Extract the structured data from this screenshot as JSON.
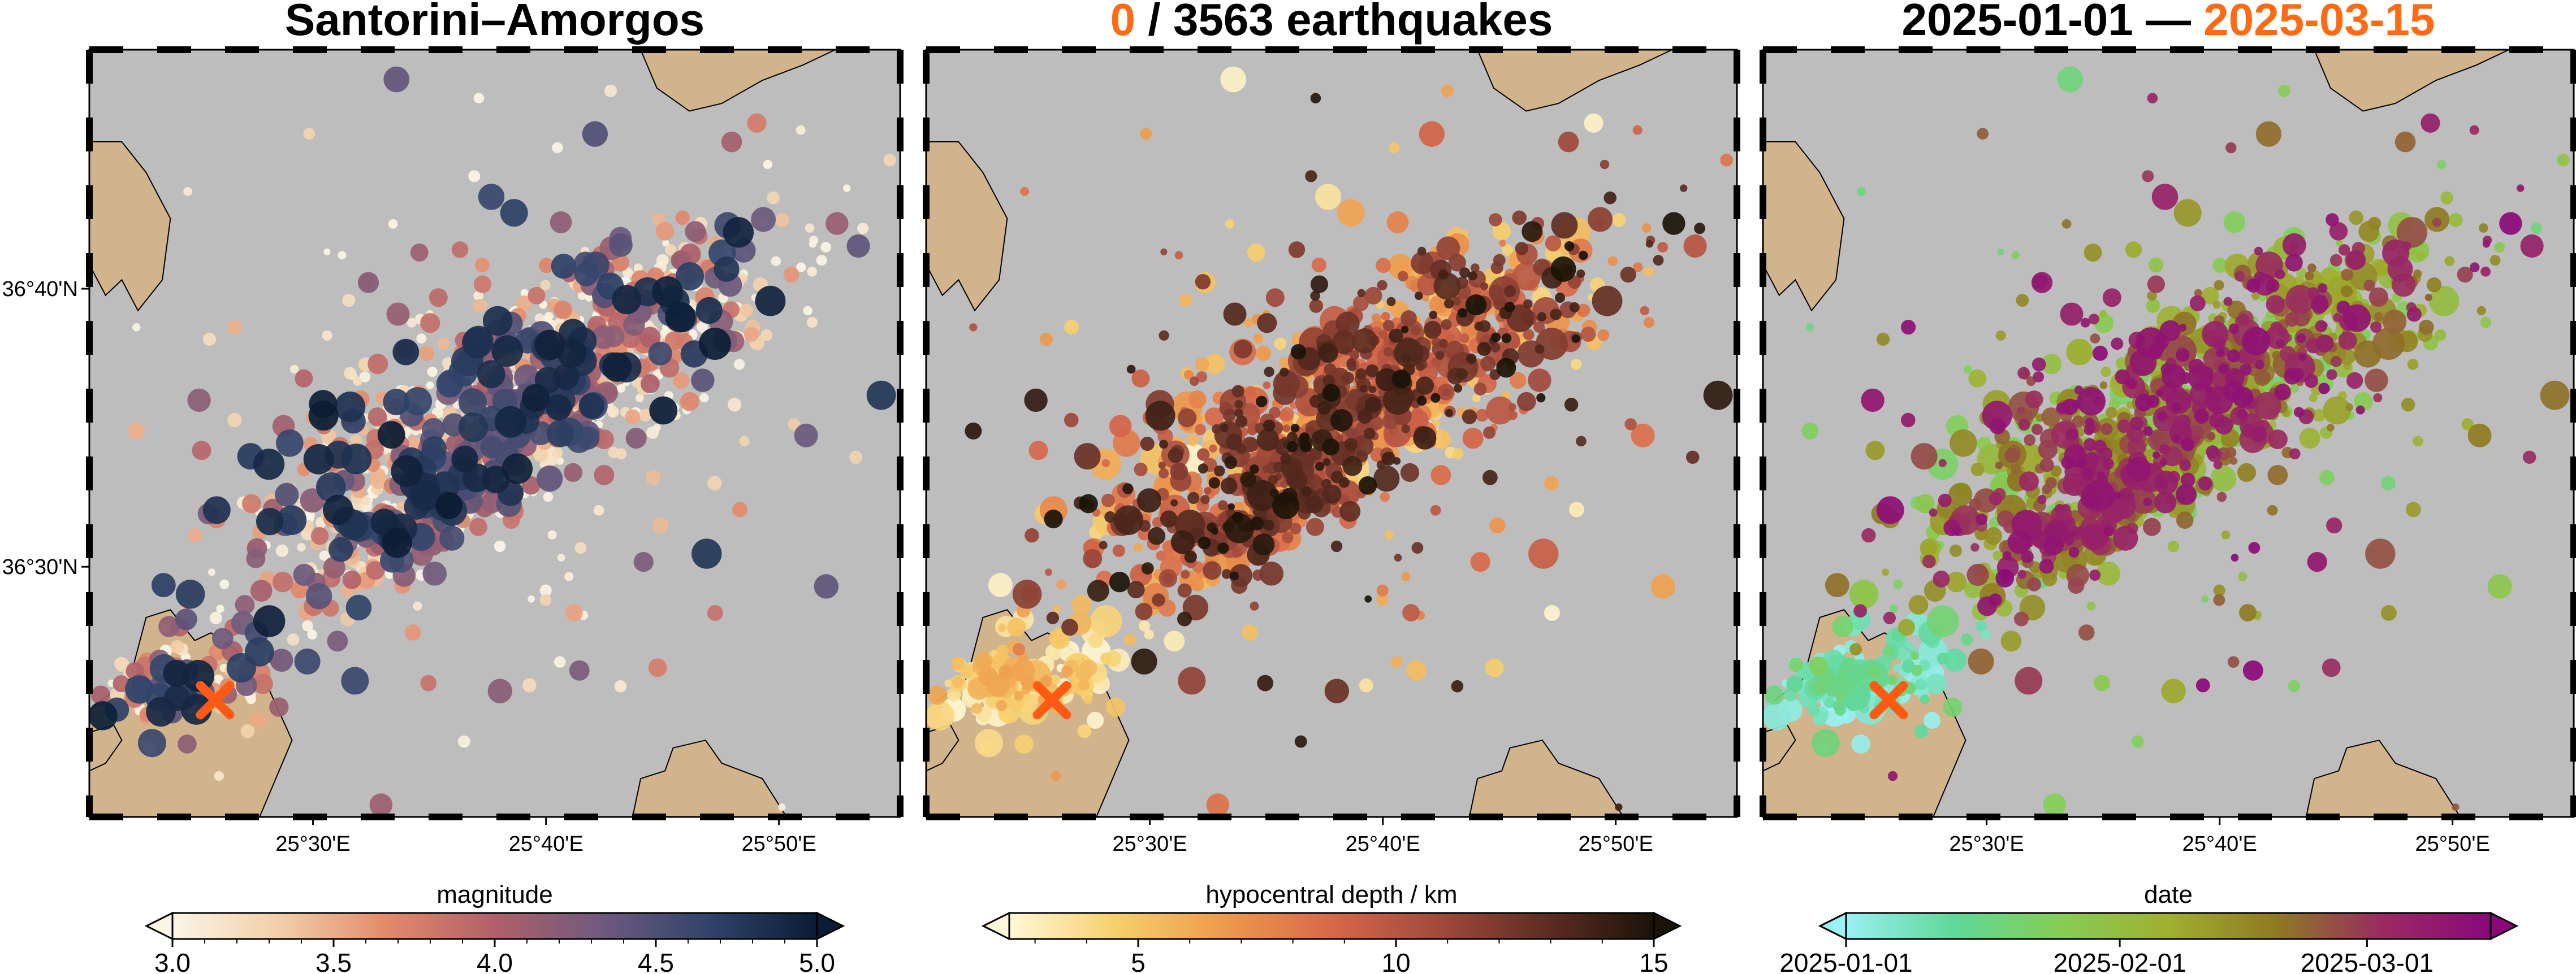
{
  "panels": [
    {
      "title_parts": [
        {
          "text": "Santorini–Amorgos",
          "color": "#000000"
        }
      ],
      "colorbar": {
        "label": "magnitude",
        "min": 3.0,
        "max": 5.0,
        "ticks": [
          "3.0",
          "3.5",
          "4.0",
          "4.5",
          "5.0"
        ],
        "tick_values": [
          3.0,
          3.5,
          4.0,
          4.5,
          5.0
        ],
        "minor_ticks": [
          3.1,
          3.2,
          3.3,
          3.4,
          3.6,
          3.7,
          3.8,
          3.9,
          4.1,
          4.2,
          4.3,
          4.4,
          4.6,
          4.7,
          4.8,
          4.9
        ],
        "colormap": [
          "#fbf5e6",
          "#f1cfa8",
          "#e38a6a",
          "#b0606a",
          "#6e5a7e",
          "#30446a",
          "#0a1c33"
        ]
      },
      "color_by": "magnitude",
      "y_axis_labels": [
        "36°40'N",
        "36°30'N"
      ],
      "show_epicenter_marker": true
    },
    {
      "title_parts": [
        {
          "text": "0",
          "color": "#ff6a13"
        },
        {
          "text": " / 3563 earthquakes",
          "color": "#000000"
        }
      ],
      "colorbar": {
        "label": "hypocentral depth / km",
        "min": 2.5,
        "max": 15.0,
        "ticks": [
          "5",
          "10",
          "15"
        ],
        "tick_values": [
          5,
          10,
          15
        ],
        "minor_ticks": [
          3,
          4,
          6,
          7,
          8,
          9,
          11,
          12,
          13,
          14
        ],
        "colormap": [
          "#fff8d8",
          "#f6cf6c",
          "#ee9a4c",
          "#d7684a",
          "#a14a3c",
          "#5e2d22",
          "#1a1308"
        ]
      },
      "color_by": "depth",
      "y_axis_labels": [],
      "show_epicenter_marker": true
    },
    {
      "title_parts": [
        {
          "text": "2025-01-01 — ",
          "color": "#000000"
        },
        {
          "text": "2025-03-15",
          "color": "#ff6a13"
        }
      ],
      "colorbar": {
        "label": "date",
        "min": 0,
        "max": 73,
        "ticks": [
          "2025-01-01",
          "2025-02-01",
          "2025-03-01"
        ],
        "tick_values": [
          0,
          31,
          59
        ],
        "minor_ticks": [],
        "colormap": [
          "#9af0f2",
          "#5fd89a",
          "#86cd55",
          "#9fb030",
          "#8e7a22",
          "#9a2a62",
          "#8a087a"
        ]
      },
      "color_by": "date",
      "y_axis_labels": [],
      "show_epicenter_marker": true
    }
  ],
  "x_axis_labels": [
    "25°30'E",
    "25°40'E",
    "25°50'E"
  ],
  "x_axis_label_lons": [
    25.5,
    25.6667,
    25.8333
  ],
  "y_axis_label_lats": [
    36.6667,
    36.5
  ],
  "map_region": {
    "lon_min": 25.34,
    "lon_max": 25.92,
    "lat_min": 36.35,
    "lat_max": 36.81
  },
  "colors": {
    "sea": "#bdbdbd",
    "land": "#d2b48c",
    "coastline": "#000000",
    "marker": "#ff5a14",
    "frame": "#000000"
  },
  "epicenter_marker": {
    "icon": "x-cross-marker",
    "lon": 25.43,
    "lat": 36.42
  }
}
